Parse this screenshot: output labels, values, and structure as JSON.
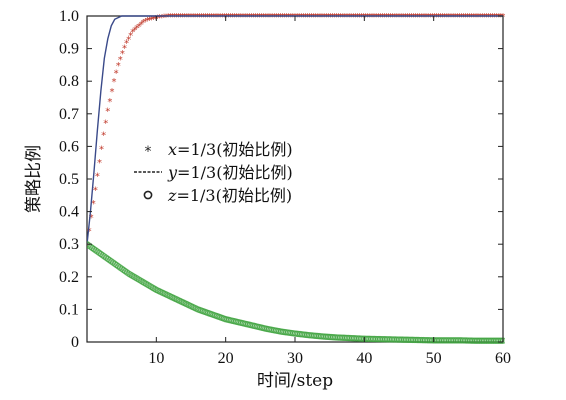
{
  "chart_data": {
    "type": "line",
    "title": "",
    "xlabel": "时间/step",
    "ylabel": "策略比例",
    "xlim": [
      0,
      60
    ],
    "ylim": [
      0,
      1.0
    ],
    "x_ticks": [
      10,
      20,
      30,
      40,
      50,
      60
    ],
    "y_ticks": [
      0,
      0.1,
      0.2,
      0.3,
      0.4,
      0.5,
      0.6,
      0.7,
      0.8,
      0.9,
      1.0
    ],
    "x_tick_labels": [
      "10",
      "20",
      "30",
      "40",
      "50",
      "60"
    ],
    "y_tick_labels": [
      "0",
      "0.1",
      "0.2",
      "0.3",
      "0.4",
      "0.5",
      "0.6",
      "0.7",
      "0.8",
      "0.9",
      "1.0"
    ],
    "grid": false,
    "legend_position": "center-left",
    "series": [
      {
        "name": "x=1/3(初始比例)",
        "legend_var": "x",
        "legend_rest": "=1/3(初始比例)",
        "marker": "*",
        "color": "#c0392b",
        "x": [
          0,
          0.5,
          1,
          1.5,
          2,
          2.5,
          3,
          3.5,
          4,
          4.5,
          5,
          5.5,
          6,
          6.5,
          7,
          7.5,
          8,
          8.5,
          9,
          10,
          12,
          15,
          20,
          30,
          40,
          50,
          60
        ],
        "y": [
          0.3,
          0.37,
          0.44,
          0.51,
          0.58,
          0.65,
          0.71,
          0.76,
          0.81,
          0.85,
          0.88,
          0.91,
          0.93,
          0.95,
          0.96,
          0.97,
          0.98,
          0.985,
          0.99,
          0.995,
          1.0,
          1.0,
          1.0,
          1.0,
          1.0,
          1.0,
          1.0
        ]
      },
      {
        "name": "y=1/3(初始比例)",
        "legend_var": "y",
        "legend_rest": "=1/3(初始比例)",
        "marker": "line",
        "color": "#3a4a8a",
        "x": [
          0,
          0.5,
          1,
          1.5,
          2,
          2.5,
          3,
          3.5,
          4,
          4.5,
          5,
          6,
          8,
          10,
          20,
          30,
          40,
          50,
          60
        ],
        "y": [
          0.3,
          0.4,
          0.52,
          0.65,
          0.77,
          0.87,
          0.93,
          0.97,
          0.99,
          0.995,
          1.0,
          1.0,
          1.0,
          1.0,
          1.0,
          1.0,
          1.0,
          1.0,
          1.0
        ]
      },
      {
        "name": "z=1/3(初始比例)",
        "legend_var": "z",
        "legend_rest": "=1/3(初始比例)",
        "marker": "o",
        "color": "#3fa33f",
        "x": [
          0,
          2,
          4,
          6,
          8,
          10,
          12,
          14,
          16,
          18,
          20,
          22,
          24,
          26,
          28,
          30,
          32,
          34,
          36,
          38,
          40,
          42,
          44,
          46,
          48,
          50,
          52,
          54,
          56,
          58,
          60
        ],
        "y": [
          0.3,
          0.27,
          0.24,
          0.21,
          0.185,
          0.16,
          0.14,
          0.12,
          0.1,
          0.085,
          0.07,
          0.06,
          0.05,
          0.04,
          0.032,
          0.026,
          0.021,
          0.017,
          0.014,
          0.012,
          0.01,
          0.009,
          0.008,
          0.007,
          0.006,
          0.005,
          0.005,
          0.005,
          0.004,
          0.004,
          0.004
        ]
      }
    ]
  }
}
